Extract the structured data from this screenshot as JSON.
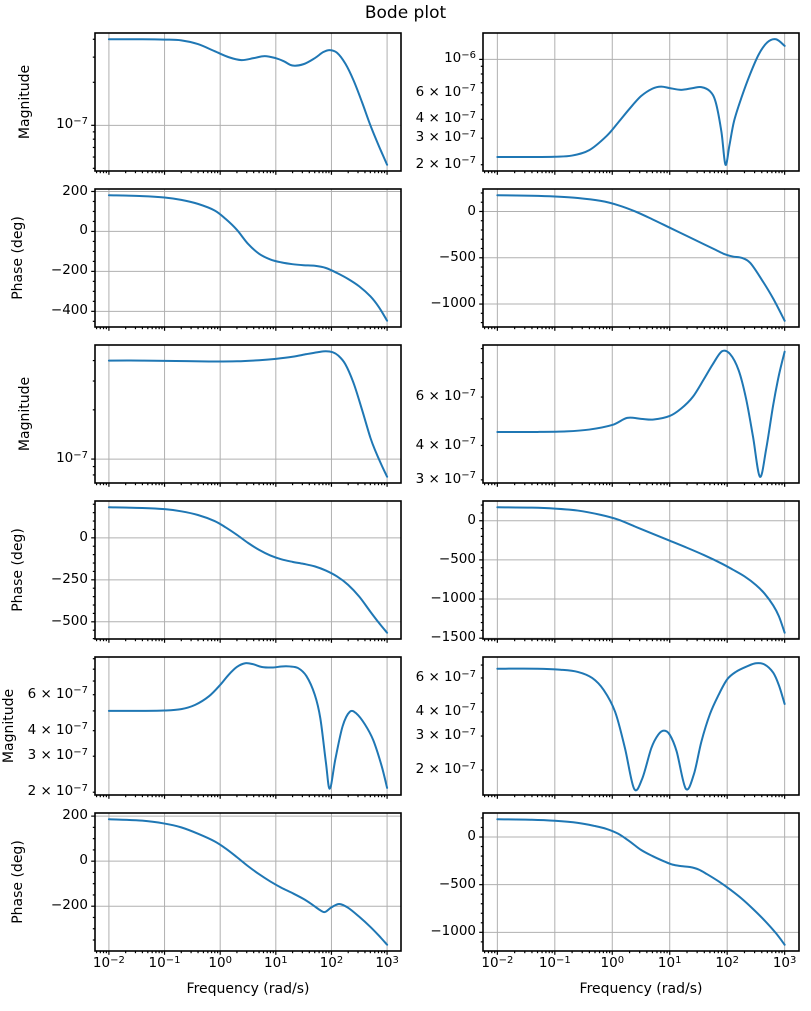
{
  "figure": {
    "title": "Bode plot",
    "xlabel": "Frequency (rad/s)",
    "line_color": "#1f77b4",
    "grid_color": "#b0b0b0",
    "axis_color": "#000000",
    "background": "#ffffff",
    "x_scale": "log",
    "x_ticks": [
      {
        "log": -2,
        "label": "10^−2"
      },
      {
        "log": -1,
        "label": "10^−1"
      },
      {
        "log": 0,
        "label": "10^0"
      },
      {
        "log": 1,
        "label": "10^1"
      },
      {
        "log": 2,
        "label": "10^2"
      },
      {
        "log": 3,
        "label": "10^3"
      }
    ]
  },
  "chart_data": [
    {
      "name": "magnitude-1-left",
      "type": "line",
      "yscale": "log",
      "ylabel": "Magnitude",
      "yticks": [
        {
          "v": 1e-07,
          "label": "10^−7",
          "grid": true
        }
      ],
      "x": [
        -2,
        -1.4,
        -1,
        -0.7,
        -0.4,
        -0.1,
        0.15,
        0.38,
        0.6,
        0.8,
        1.0,
        1.15,
        1.3,
        1.5,
        1.7,
        1.85,
        1.97,
        2.1,
        2.25,
        2.4,
        2.55,
        2.7,
        2.85,
        3.0
      ],
      "y": [
        4e-07,
        4e-07,
        3.98e-07,
        3.93e-07,
        3.7e-07,
        3.3e-07,
        3e-07,
        2.86e-07,
        2.95e-07,
        3.05e-07,
        2.95e-07,
        2.8e-07,
        2.62e-07,
        2.68e-07,
        2.95e-07,
        3.25e-07,
        3.36e-07,
        3.22e-07,
        2.7e-07,
        2.05e-07,
        1.45e-07,
        1e-07,
        7.2e-08,
        5.3e-08
      ]
    },
    {
      "name": "magnitude-1-right",
      "type": "line",
      "yscale": "log",
      "ylabel": "",
      "yticks": [
        {
          "v": 1e-06,
          "label": "10^−6",
          "grid": true
        },
        {
          "v": 6e-07,
          "label": "6 × 10^−7",
          "grid": false
        },
        {
          "v": 4e-07,
          "label": "4 × 10^−7",
          "grid": false
        },
        {
          "v": 3e-07,
          "label": "3 × 10^−7",
          "grid": false
        },
        {
          "v": 2e-07,
          "label": "2 × 10^−7",
          "grid": false
        }
      ],
      "x": [
        -2,
        -1.4,
        -1,
        -0.7,
        -0.4,
        -0.1,
        0.1,
        0.3,
        0.5,
        0.7,
        0.85,
        1.0,
        1.2,
        1.4,
        1.55,
        1.7,
        1.8,
        1.9,
        1.97,
        2.04,
        2.12,
        2.25,
        2.4,
        2.55,
        2.7,
        2.85,
        3.0
      ],
      "y": [
        2.25e-07,
        2.25e-07,
        2.26e-07,
        2.3e-07,
        2.5e-07,
        3.1e-07,
        3.8e-07,
        4.7e-07,
        5.7e-07,
        6.4e-07,
        6.6e-07,
        6.45e-07,
        6.28e-07,
        6.45e-07,
        6.55e-07,
        6.15e-07,
        5.2e-07,
        3.3e-07,
        2e-07,
        2.7e-07,
        3.9e-07,
        5.6e-07,
        8e-07,
        1.08e-06,
        1.3e-06,
        1.36e-06,
        1.23e-06
      ]
    },
    {
      "name": "phase-1-left",
      "type": "line",
      "yscale": "linear",
      "ylabel": "Phase (deg)",
      "yticks": [
        {
          "v": 200,
          "label": "200",
          "grid": true
        },
        {
          "v": 0,
          "label": "0",
          "grid": true
        },
        {
          "v": -200,
          "label": "−200",
          "grid": true
        },
        {
          "v": -400,
          "label": "−400",
          "grid": true
        }
      ],
      "x": [
        -2,
        -1.4,
        -1,
        -0.7,
        -0.4,
        -0.1,
        0.1,
        0.3,
        0.5,
        0.7,
        0.9,
        1.1,
        1.3,
        1.5,
        1.7,
        1.9,
        2.1,
        2.3,
        2.5,
        2.7,
        2.85,
        3.0
      ],
      "y": [
        181,
        177,
        170,
        158,
        138,
        105,
        62,
        8,
        -62,
        -112,
        -140,
        -155,
        -164,
        -169,
        -172,
        -183,
        -208,
        -238,
        -275,
        -325,
        -378,
        -447
      ]
    },
    {
      "name": "phase-1-right",
      "type": "line",
      "yscale": "linear",
      "ylabel": "",
      "yticks": [
        {
          "v": 0,
          "label": "0",
          "grid": true
        },
        {
          "v": -500,
          "label": "−500",
          "grid": true
        },
        {
          "v": -1000,
          "label": "−1000",
          "grid": true
        }
      ],
      "x": [
        -2,
        -1.4,
        -1,
        -0.6,
        -0.2,
        0.1,
        0.4,
        0.7,
        1.0,
        1.3,
        1.6,
        1.8,
        1.95,
        2.1,
        2.25,
        2.4,
        2.6,
        2.8,
        3.0
      ],
      "y": [
        175,
        170,
        162,
        146,
        114,
        68,
        0,
        -85,
        -175,
        -265,
        -355,
        -415,
        -460,
        -487,
        -500,
        -555,
        -735,
        -940,
        -1180
      ]
    },
    {
      "name": "magnitude-2-left",
      "type": "line",
      "yscale": "log",
      "ylabel": "Magnitude",
      "yticks": [
        {
          "v": 1e-07,
          "label": "10^−7",
          "grid": true
        }
      ],
      "x": [
        -2,
        -1.4,
        -0.8,
        -0.2,
        0.3,
        0.7,
        1.0,
        1.3,
        1.55,
        1.75,
        1.9,
        2.02,
        2.12,
        2.25,
        2.4,
        2.55,
        2.7,
        2.8,
        2.9,
        3.0
      ],
      "y": [
        4e-07,
        4e-07,
        3.98e-07,
        3.95e-07,
        3.96e-07,
        4.02e-07,
        4.1e-07,
        4.22e-07,
        4.38e-07,
        4.5e-07,
        4.56e-07,
        4.5e-07,
        4.3e-07,
        3.8e-07,
        2.9e-07,
        2e-07,
        1.35e-07,
        1.1e-07,
        9.2e-08,
        7.8e-08
      ]
    },
    {
      "name": "magnitude-2-right",
      "type": "line",
      "yscale": "log",
      "ylabel": "",
      "yticks": [
        {
          "v": 6e-07,
          "label": "6 × 10^−7",
          "grid": false
        },
        {
          "v": 4e-07,
          "label": "4 × 10^−7",
          "grid": false
        },
        {
          "v": 3e-07,
          "label": "3 × 10^−7",
          "grid": false
        }
      ],
      "x": [
        -2,
        -1.3,
        -0.8,
        -0.4,
        0,
        0.26,
        0.5,
        0.72,
        1.0,
        1.2,
        1.4,
        1.6,
        1.75,
        1.91,
        2.05,
        2.2,
        2.33,
        2.45,
        2.57,
        2.68,
        2.8,
        2.9,
        3.0
      ],
      "y": [
        4.48e-07,
        4.48e-07,
        4.5e-07,
        4.57e-07,
        4.75e-07,
        5.04e-07,
        5e-07,
        4.97e-07,
        5.12e-07,
        5.45e-07,
        6e-07,
        7e-07,
        7.9e-07,
        8.8e-07,
        8.6e-07,
        7.5e-07,
        5.9e-07,
        4.3e-07,
        3.08e-07,
        3.9e-07,
        5.6e-07,
        7.2e-07,
        8.77e-07
      ]
    },
    {
      "name": "phase-2-left",
      "type": "line",
      "yscale": "linear",
      "ylabel": "Phase (deg)",
      "yticks": [
        {
          "v": 0,
          "label": "0",
          "grid": true
        },
        {
          "v": -250,
          "label": "−250",
          "grid": true
        },
        {
          "v": -500,
          "label": "−500",
          "grid": true
        }
      ],
      "x": [
        -2,
        -1.4,
        -1,
        -0.7,
        -0.4,
        -0.1,
        0.1,
        0.3,
        0.5,
        0.7,
        0.9,
        1.1,
        1.3,
        1.5,
        1.7,
        1.9,
        2.1,
        2.3,
        2.5,
        2.7,
        2.85,
        3.0
      ],
      "y": [
        182,
        178,
        171,
        158,
        136,
        100,
        62,
        18,
        -30,
        -72,
        -105,
        -128,
        -143,
        -155,
        -170,
        -195,
        -230,
        -280,
        -350,
        -440,
        -505,
        -565
      ]
    },
    {
      "name": "phase-2-right",
      "type": "line",
      "yscale": "linear",
      "ylabel": "",
      "yticks": [
        {
          "v": 0,
          "label": "0",
          "grid": true
        },
        {
          "v": -500,
          "label": "−500",
          "grid": true
        },
        {
          "v": -1000,
          "label": "−1000",
          "grid": true
        },
        {
          "v": -1500,
          "label": "−1500",
          "grid": true
        }
      ],
      "x": [
        -2,
        -1.4,
        -1,
        -0.6,
        -0.2,
        0.1,
        0.4,
        0.7,
        1.0,
        1.3,
        1.6,
        1.9,
        2.1,
        2.3,
        2.5,
        2.65,
        2.8,
        2.9,
        3.0
      ],
      "y": [
        172,
        167,
        155,
        130,
        75,
        15,
        -75,
        -165,
        -255,
        -345,
        -440,
        -545,
        -625,
        -710,
        -820,
        -930,
        -1080,
        -1220,
        -1430
      ]
    },
    {
      "name": "magnitude-3-left",
      "type": "line",
      "yscale": "log",
      "ylabel": "Magnitude",
      "yticks": [
        {
          "v": 6e-07,
          "label": "6 × 10^−7",
          "grid": false
        },
        {
          "v": 4e-07,
          "label": "4 × 10^−7",
          "grid": false
        },
        {
          "v": 3e-07,
          "label": "3 × 10^−7",
          "grid": false
        },
        {
          "v": 2e-07,
          "label": "2 × 10^−7",
          "grid": false
        }
      ],
      "x": [
        -2,
        -1.4,
        -1,
        -0.7,
        -0.45,
        -0.2,
        0,
        0.15,
        0.3,
        0.45,
        0.6,
        0.75,
        0.95,
        1.1,
        1.25,
        1.4,
        1.55,
        1.7,
        1.8,
        1.9,
        1.97,
        2.07,
        2.2,
        2.33,
        2.45,
        2.6,
        2.75,
        2.9,
        3.0
      ],
      "y": [
        5e-07,
        5e-07,
        5.02e-07,
        5.1e-07,
        5.35e-07,
        5.9e-07,
        6.7e-07,
        7.5e-07,
        8.2e-07,
        8.55e-07,
        8.45e-07,
        8.2e-07,
        8.15e-07,
        8.25e-07,
        8.25e-07,
        8.1e-07,
        7.4e-07,
        6e-07,
        4.6e-07,
        2.8e-07,
        2.08e-07,
        2.9e-07,
        4.2e-07,
        4.95e-07,
        4.85e-07,
        4.3e-07,
        3.6e-07,
        2.7e-07,
        2.1e-07
      ]
    },
    {
      "name": "magnitude-3-right",
      "type": "line",
      "yscale": "log",
      "ylabel": "",
      "yticks": [
        {
          "v": 6e-07,
          "label": "6 × 10^−7",
          "grid": false
        },
        {
          "v": 4e-07,
          "label": "4 × 10^−7",
          "grid": false
        },
        {
          "v": 3e-07,
          "label": "3 × 10^−7",
          "grid": false
        },
        {
          "v": 2e-07,
          "label": "2 × 10^−7",
          "grid": false
        }
      ],
      "x": [
        -2,
        -1.3,
        -0.9,
        -0.6,
        -0.35,
        -0.15,
        0.05,
        0.22,
        0.38,
        0.52,
        0.68,
        0.8,
        0.9,
        1.0,
        1.12,
        1.28,
        1.42,
        1.55,
        1.7,
        1.85,
        2.0,
        2.15,
        2.35,
        2.5,
        2.65,
        2.8,
        2.9,
        3.0
      ],
      "y": [
        6.7e-07,
        6.7e-07,
        6.62e-07,
        6.45e-07,
        6e-07,
        5.2e-07,
        4e-07,
        2.6e-07,
        1.6e-07,
        1.8e-07,
        2.6e-07,
        3.05e-07,
        3.2e-07,
        3.05e-07,
        2.5e-07,
        1.6e-07,
        1.9e-07,
        2.8e-07,
        3.9e-07,
        4.9e-07,
        5.9e-07,
        6.45e-07,
        6.9e-07,
        7.15e-07,
        7.05e-07,
        6.4e-07,
        5.5e-07,
        4.4e-07
      ]
    },
    {
      "name": "phase-3-left",
      "type": "line",
      "yscale": "linear",
      "ylabel": "Phase (deg)",
      "yticks": [
        {
          "v": 200,
          "label": "200",
          "grid": true
        },
        {
          "v": 0,
          "label": "0",
          "grid": true
        },
        {
          "v": -200,
          "label": "−200",
          "grid": true
        }
      ],
      "x": [
        -2,
        -1.4,
        -1,
        -0.7,
        -0.4,
        -0.1,
        0.1,
        0.3,
        0.5,
        0.7,
        0.9,
        1.1,
        1.3,
        1.5,
        1.65,
        1.78,
        1.88,
        2.0,
        2.14,
        2.3,
        2.5,
        2.7,
        2.85,
        3.0
      ],
      "y": [
        186,
        180,
        167,
        150,
        122,
        88,
        56,
        18,
        -22,
        -58,
        -90,
        -118,
        -142,
        -168,
        -192,
        -215,
        -226,
        -205,
        -190,
        -207,
        -247,
        -292,
        -330,
        -371
      ]
    },
    {
      "name": "phase-3-right",
      "type": "line",
      "yscale": "linear",
      "ylabel": "",
      "yticks": [
        {
          "v": 0,
          "label": "0",
          "grid": true
        },
        {
          "v": -500,
          "label": "−500",
          "grid": true
        },
        {
          "v": -1000,
          "label": "−1000",
          "grid": true
        }
      ],
      "x": [
        -2,
        -1.4,
        -1,
        -0.6,
        -0.3,
        -0.1,
        0.1,
        0.3,
        0.5,
        0.7,
        0.9,
        1.05,
        1.2,
        1.35,
        1.5,
        1.65,
        1.85,
        2.05,
        2.25,
        2.45,
        2.65,
        2.85,
        3.0
      ],
      "y": [
        186,
        181,
        170,
        148,
        115,
        85,
        35,
        -45,
        -135,
        -200,
        -255,
        -290,
        -305,
        -315,
        -340,
        -390,
        -465,
        -550,
        -645,
        -755,
        -875,
        -1010,
        -1130
      ]
    }
  ]
}
